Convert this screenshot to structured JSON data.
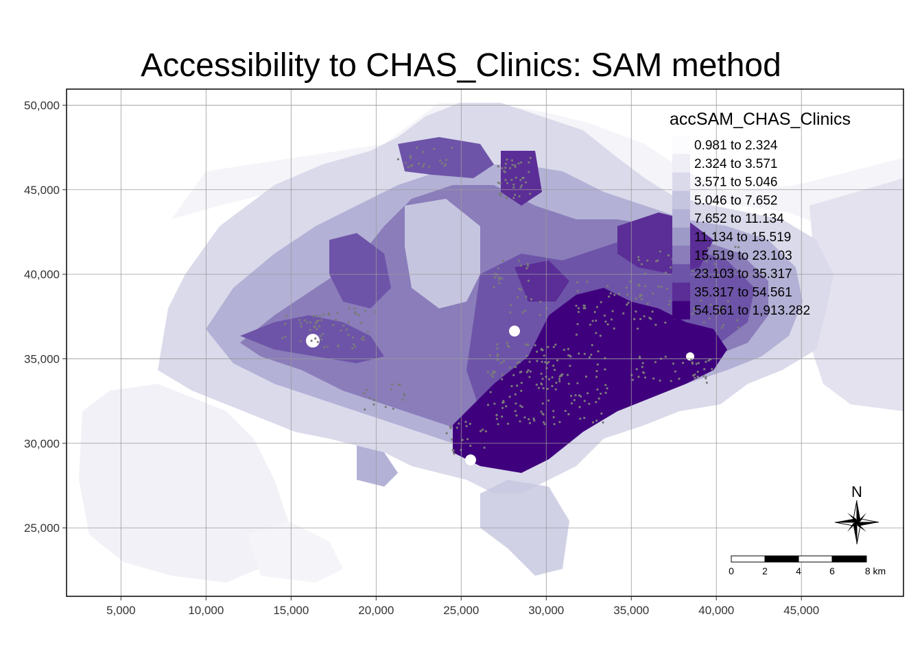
{
  "title": "Accessibility to CHAS_Clinics: SAM method",
  "x_axis": {
    "ticks": [
      5000,
      10000,
      15000,
      20000,
      25000,
      30000,
      35000,
      40000,
      45000
    ],
    "labels": [
      "5,000",
      "10,000",
      "15,000",
      "20,000",
      "25,000",
      "30,000",
      "35,000",
      "40,000",
      "45,000"
    ],
    "range": [
      1800,
      51000
    ]
  },
  "y_axis": {
    "ticks": [
      25000,
      30000,
      35000,
      40000,
      45000,
      50000
    ],
    "labels": [
      "25,000",
      "30,000",
      "35,000",
      "40,000",
      "45,000",
      "50,000"
    ],
    "range": [
      20950,
      50950
    ]
  },
  "grid": true,
  "legend": {
    "title": "accSAM_CHAS_Clinics",
    "placement": "top-right",
    "classes": [
      {
        "label": "0.981 to 2.324",
        "color": "#fcfbfd"
      },
      {
        "label": "2.324 to 3.571",
        "color": "#efedf5"
      },
      {
        "label": "3.571 to 5.046",
        "color": "#dadaeb"
      },
      {
        "label": "5.046 to 7.652",
        "color": "#c6c5e0"
      },
      {
        "label": "7.652 to 11.134",
        "color": "#b3b1d5"
      },
      {
        "label": "11.134 to 15.519",
        "color": "#9e9ac8"
      },
      {
        "label": "15.519 to 23.103",
        "color": "#8a7dba"
      },
      {
        "label": "23.103 to 35.317",
        "color": "#6d54a8"
      },
      {
        "label": "35.317 to 54.561",
        "color": "#5b2d96"
      },
      {
        "label": "54.561 to 1,913.282",
        "color": "#3f007d"
      }
    ]
  },
  "scale_bar": {
    "labels": [
      "0",
      "2",
      "4",
      "6",
      "8 km"
    ]
  },
  "north_arrow": {
    "label": "N"
  }
}
